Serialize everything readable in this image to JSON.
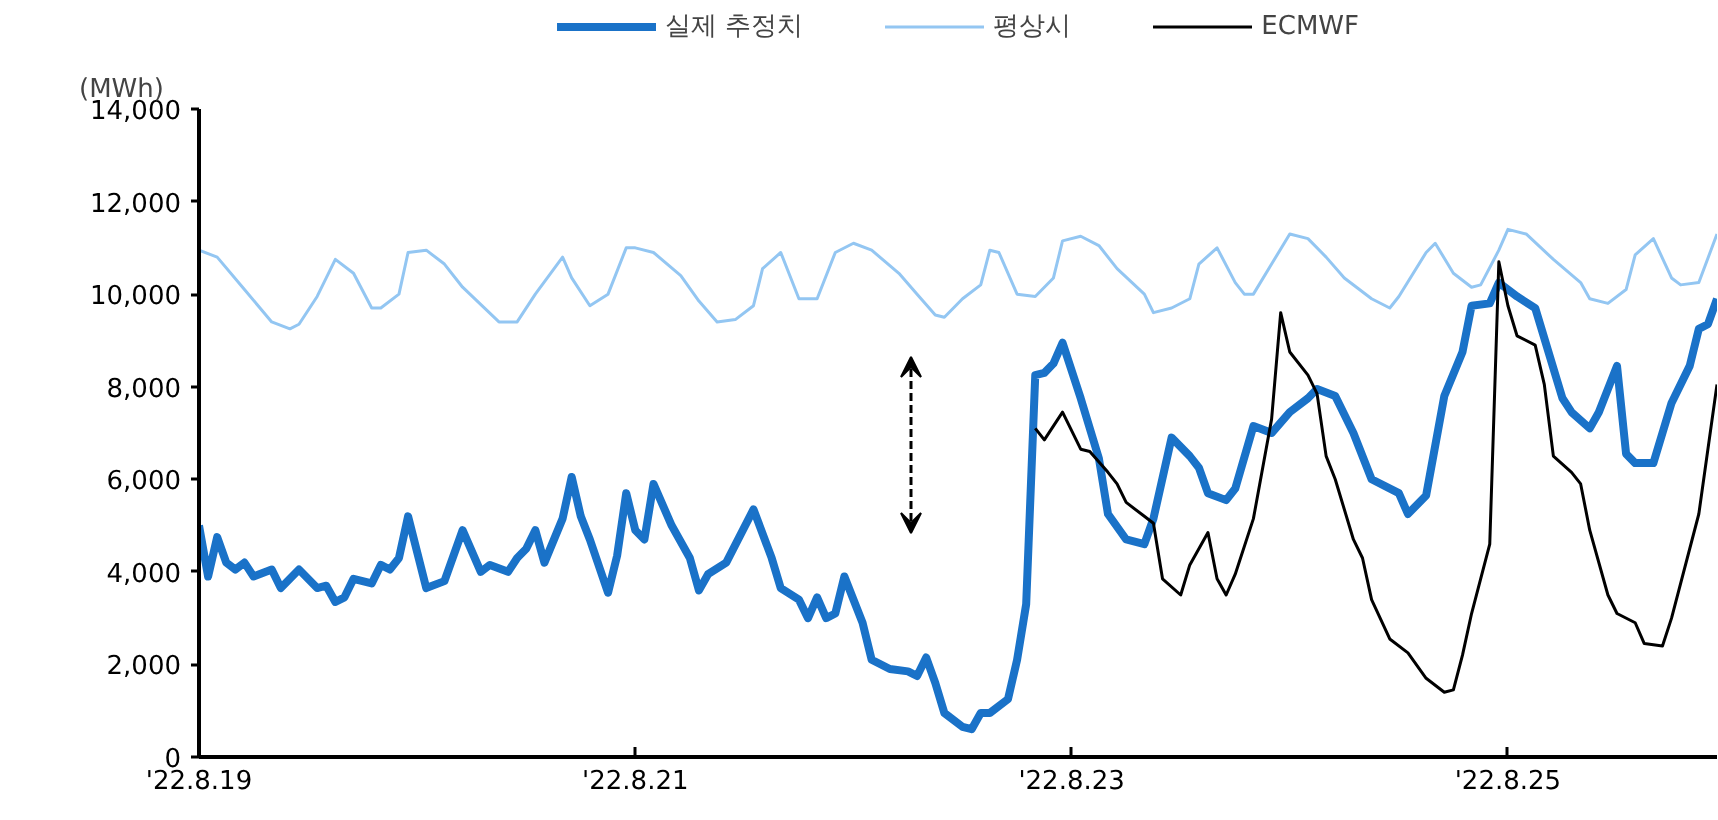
{
  "chart_data": {
    "type": "line",
    "ylabel": "(MWh)",
    "legend": "top",
    "grid": false,
    "xlim": [
      "2022-08-19T00:00",
      "2022-08-25T23:00"
    ],
    "xticks": [
      {
        "value": "2022-08-19",
        "label": "'22.8.19"
      },
      {
        "value": "2022-08-21",
        "label": "'22.8.21"
      },
      {
        "value": "2022-08-23",
        "label": "'22.8.23"
      },
      {
        "value": "2022-08-25",
        "label": "'22.8.25"
      }
    ],
    "ylim": [
      0,
      14000
    ],
    "yticks": [
      {
        "value": 0,
        "label": "0"
      },
      {
        "value": 2000,
        "label": "2,000"
      },
      {
        "value": 4000,
        "label": "4,000"
      },
      {
        "value": 6000,
        "label": "6,000"
      },
      {
        "value": 8000,
        "label": "8,000"
      },
      {
        "value": 10000,
        "label": "10,000"
      },
      {
        "value": 12000,
        "label": "12,000"
      },
      {
        "value": 14000,
        "label": "14,000"
      }
    ],
    "series": [
      {
        "name": "실제 추정치",
        "color": "#1a72c8",
        "x": [
          "2022-08-19T00:00",
          "2022-08-19T01:00",
          "2022-08-19T02:00",
          "2022-08-19T03:00",
          "2022-08-19T04:00",
          "2022-08-19T05:00",
          "2022-08-19T06:00",
          "2022-08-19T08:00",
          "2022-08-19T09:00",
          "2022-08-19T11:00",
          "2022-08-19T13:00",
          "2022-08-19T14:00",
          "2022-08-19T15:00",
          "2022-08-19T16:00",
          "2022-08-19T17:00",
          "2022-08-19T19:00",
          "2022-08-19T20:00",
          "2022-08-19T21:00",
          "2022-08-19T22:00",
          "2022-08-19T23:00",
          "2022-08-20T01:00",
          "2022-08-20T03:00",
          "2022-08-20T05:00",
          "2022-08-20T07:00",
          "2022-08-20T08:00",
          "2022-08-20T10:00",
          "2022-08-20T11:00",
          "2022-08-20T12:00",
          "2022-08-20T13:00",
          "2022-08-20T14:00",
          "2022-08-20T16:00",
          "2022-08-20T17:00",
          "2022-08-20T18:00",
          "2022-08-20T19:00",
          "2022-08-20T21:00",
          "2022-08-20T22:00",
          "2022-08-20T23:00",
          "2022-08-21T00:00",
          "2022-08-21T01:00",
          "2022-08-21T02:00",
          "2022-08-21T04:00",
          "2022-08-21T06:00",
          "2022-08-21T07:00",
          "2022-08-21T08:00",
          "2022-08-21T10:00",
          "2022-08-21T13:00",
          "2022-08-21T15:00",
          "2022-08-21T16:00",
          "2022-08-21T18:00",
          "2022-08-21T19:00",
          "2022-08-21T20:00",
          "2022-08-21T21:00",
          "2022-08-21T22:00",
          "2022-08-21T23:00",
          "2022-08-22T01:00",
          "2022-08-22T02:00",
          "2022-08-22T04:00",
          "2022-08-22T06:00",
          "2022-08-22T07:00",
          "2022-08-22T08:00",
          "2022-08-22T09:00",
          "2022-08-22T10:00",
          "2022-08-22T12:00",
          "2022-08-22T13:00",
          "2022-08-22T14:00",
          "2022-08-22T15:00",
          "2022-08-22T17:00",
          "2022-08-22T18:00",
          "2022-08-22T19:00",
          "2022-08-22T20:00",
          "2022-08-22T21:00",
          "2022-08-22T22:00",
          "2022-08-22T23:00",
          "2022-08-23T01:00",
          "2022-08-23T03:00",
          "2022-08-23T04:00",
          "2022-08-23T06:00",
          "2022-08-23T08:00",
          "2022-08-23T09:00",
          "2022-08-23T11:00",
          "2022-08-23T13:00",
          "2022-08-23T14:00",
          "2022-08-23T15:00",
          "2022-08-23T17:00",
          "2022-08-23T18:00",
          "2022-08-23T20:00",
          "2022-08-23T22:00",
          "2022-08-24T00:00",
          "2022-08-24T02:00",
          "2022-08-24T03:00",
          "2022-08-24T05:00",
          "2022-08-24T07:00",
          "2022-08-24T09:00",
          "2022-08-24T12:00",
          "2022-08-24T13:00",
          "2022-08-24T15:00",
          "2022-08-24T17:00",
          "2022-08-24T19:00",
          "2022-08-24T20:00",
          "2022-08-24T22:00",
          "2022-08-24T23:00",
          "2022-08-25T01:00",
          "2022-08-25T03:00",
          "2022-08-25T06:00",
          "2022-08-25T07:00",
          "2022-08-25T09:00",
          "2022-08-25T10:00",
          "2022-08-25T12:00",
          "2022-08-25T13:00",
          "2022-08-25T14:00",
          "2022-08-25T16:00",
          "2022-08-25T18:00",
          "2022-08-25T20:00",
          "2022-08-25T21:00",
          "2022-08-25T22:00",
          "2022-08-25T23:00"
        ],
        "values": [
          5000,
          3900,
          4750,
          4200,
          4050,
          4200,
          3900,
          4050,
          3650,
          4050,
          3650,
          3700,
          3350,
          3450,
          3850,
          3750,
          4150,
          4050,
          4300,
          5200,
          3650,
          3800,
          4900,
          4000,
          4150,
          4000,
          4300,
          4500,
          4900,
          4200,
          5150,
          6050,
          5200,
          4700,
          3550,
          4350,
          5700,
          4900,
          4700,
          5900,
          5000,
          4300,
          3600,
          3950,
          4200,
          5350,
          4300,
          3650,
          3400,
          3000,
          3450,
          3000,
          3100,
          3900,
          2900,
          2100,
          1900,
          1850,
          1750,
          2150,
          1600,
          950,
          650,
          600,
          950,
          950,
          1250,
          2100,
          3300,
          8250,
          8300,
          8500,
          8950,
          7750,
          6450,
          5250,
          4700,
          4600,
          5150,
          6900,
          6500,
          6250,
          5700,
          5550,
          5800,
          7150,
          7000,
          7450,
          7750,
          7950,
          7800,
          7000,
          6000,
          5700,
          5250,
          5650,
          7800,
          8750,
          9750,
          9800,
          10250,
          9950,
          9700,
          7750,
          7450,
          7100,
          7450,
          8450,
          6550,
          6350,
          6350,
          7650,
          8450,
          9250,
          9350,
          9900
        ]
      },
      {
        "name": "평상시",
        "color": "#93c6f2",
        "x": [
          "2022-08-19T00:00",
          "2022-08-19T02:00",
          "2022-08-19T05:00",
          "2022-08-19T08:00",
          "2022-08-19T10:00",
          "2022-08-19T11:00",
          "2022-08-19T13:00",
          "2022-08-19T15:00",
          "2022-08-19T17:00",
          "2022-08-19T19:00",
          "2022-08-19T20:00",
          "2022-08-19T22:00",
          "2022-08-19T23:00",
          "2022-08-20T01:00",
          "2022-08-20T03:00",
          "2022-08-20T05:00",
          "2022-08-20T09:00",
          "2022-08-20T11:00",
          "2022-08-20T13:00",
          "2022-08-20T16:00",
          "2022-08-20T17:00",
          "2022-08-20T19:00",
          "2022-08-20T21:00",
          "2022-08-20T23:00",
          "2022-08-21T00:00",
          "2022-08-21T02:00",
          "2022-08-21T05:00",
          "2022-08-21T07:00",
          "2022-08-21T09:00",
          "2022-08-21T11:00",
          "2022-08-21T13:00",
          "2022-08-21T14:00",
          "2022-08-21T16:00",
          "2022-08-21T18:00",
          "2022-08-21T20:00",
          "2022-08-21T22:00",
          "2022-08-22T00:00",
          "2022-08-22T02:00",
          "2022-08-22T05:00",
          "2022-08-22T07:00",
          "2022-08-22T09:00",
          "2022-08-22T10:00",
          "2022-08-22T12:00",
          "2022-08-22T14:00",
          "2022-08-22T15:00",
          "2022-08-22T16:00",
          "2022-08-22T18:00",
          "2022-08-22T20:00",
          "2022-08-22T22:00",
          "2022-08-22T23:00",
          "2022-08-23T01:00",
          "2022-08-23T03:00",
          "2022-08-23T05:00",
          "2022-08-23T08:00",
          "2022-08-23T09:00",
          "2022-08-23T11:00",
          "2022-08-23T13:00",
          "2022-08-23T14:00",
          "2022-08-23T16:00",
          "2022-08-23T18:00",
          "2022-08-23T19:00",
          "2022-08-23T20:00",
          "2022-08-23T22:00",
          "2022-08-24T00:00",
          "2022-08-24T02:00",
          "2022-08-24T04:00",
          "2022-08-24T06:00",
          "2022-08-24T09:00",
          "2022-08-24T11:00",
          "2022-08-24T12:00",
          "2022-08-24T15:00",
          "2022-08-24T16:00",
          "2022-08-24T18:00",
          "2022-08-24T20:00",
          "2022-08-24T21:00",
          "2022-08-24T23:00",
          "2022-08-25T00:00",
          "2022-08-25T02:00",
          "2022-08-25T05:00",
          "2022-08-25T08:00",
          "2022-08-25T09:00",
          "2022-08-25T11:00",
          "2022-08-25T13:00",
          "2022-08-25T14:00",
          "2022-08-25T16:00",
          "2022-08-25T18:00",
          "2022-08-25T19:00",
          "2022-08-25T21:00",
          "2022-08-25T23:00"
        ],
        "values": [
          10950,
          10800,
          10100,
          9400,
          9250,
          9350,
          9950,
          10750,
          10450,
          9700,
          9700,
          10000,
          10900,
          10950,
          10650,
          10150,
          9400,
          9400,
          10000,
          10800,
          10350,
          9750,
          10000,
          11000,
          11000,
          10900,
          10400,
          9850,
          9400,
          9450,
          9750,
          10550,
          10900,
          9900,
          9900,
          10900,
          11100,
          10950,
          10450,
          10000,
          9550,
          9500,
          9900,
          10200,
          10950,
          10900,
          10000,
          9950,
          10350,
          11150,
          11250,
          11050,
          10550,
          10000,
          9600,
          9700,
          9900,
          10650,
          11000,
          10250,
          10000,
          10000,
          10650,
          11300,
          11200,
          10800,
          10350,
          9900,
          9700,
          9950,
          10900,
          11100,
          10450,
          10150,
          10200,
          10950,
          11400,
          11300,
          10750,
          10250,
          9900,
          9800,
          10100,
          10850,
          11200,
          10350,
          10200,
          10250,
          11300
        ]
      },
      {
        "name": "ECMWF",
        "color": "#000000",
        "x": [
          "2022-08-22T20:00",
          "2022-08-22T21:00",
          "2022-08-22T23:00",
          "2022-08-23T01:00",
          "2022-08-23T02:00",
          "2022-08-23T04:00",
          "2022-08-23T05:00",
          "2022-08-23T06:00",
          "2022-08-23T08:00",
          "2022-08-23T09:00",
          "2022-08-23T10:00",
          "2022-08-23T12:00",
          "2022-08-23T13:00",
          "2022-08-23T15:00",
          "2022-08-23T16:00",
          "2022-08-23T17:00",
          "2022-08-23T18:00",
          "2022-08-23T20:00",
          "2022-08-23T22:00",
          "2022-08-23T23:00",
          "2022-08-24T00:00",
          "2022-08-24T02:00",
          "2022-08-24T03:00",
          "2022-08-24T04:00",
          "2022-08-24T05:00",
          "2022-08-24T07:00",
          "2022-08-24T08:00",
          "2022-08-24T09:00",
          "2022-08-24T11:00",
          "2022-08-24T13:00",
          "2022-08-24T15:00",
          "2022-08-24T17:00",
          "2022-08-24T18:00",
          "2022-08-24T19:00",
          "2022-08-24T20:00",
          "2022-08-24T22:00",
          "2022-08-24T23:00",
          "2022-08-25T00:00",
          "2022-08-25T01:00",
          "2022-08-25T03:00",
          "2022-08-25T04:00",
          "2022-08-25T05:00",
          "2022-08-25T07:00",
          "2022-08-25T08:00",
          "2022-08-25T09:00",
          "2022-08-25T11:00",
          "2022-08-25T12:00",
          "2022-08-25T14:00",
          "2022-08-25T15:00",
          "2022-08-25T17:00",
          "2022-08-25T18:00",
          "2022-08-25T21:00",
          "2022-08-25T23:00"
        ],
        "values": [
          7100,
          6850,
          7450,
          6650,
          6600,
          6150,
          5900,
          5500,
          5200,
          5050,
          3850,
          3500,
          4150,
          4850,
          3850,
          3500,
          3950,
          5150,
          7300,
          9600,
          8750,
          8250,
          7850,
          6500,
          6000,
          4700,
          4300,
          3400,
          2550,
          2250,
          1700,
          1400,
          1450,
          2200,
          3100,
          4600,
          10700,
          9750,
          9100,
          8900,
          8050,
          6500,
          6150,
          5900,
          4900,
          3500,
          3100,
          2900,
          2450,
          2400,
          3000,
          5250,
          8050
        ]
      }
    ]
  }
}
